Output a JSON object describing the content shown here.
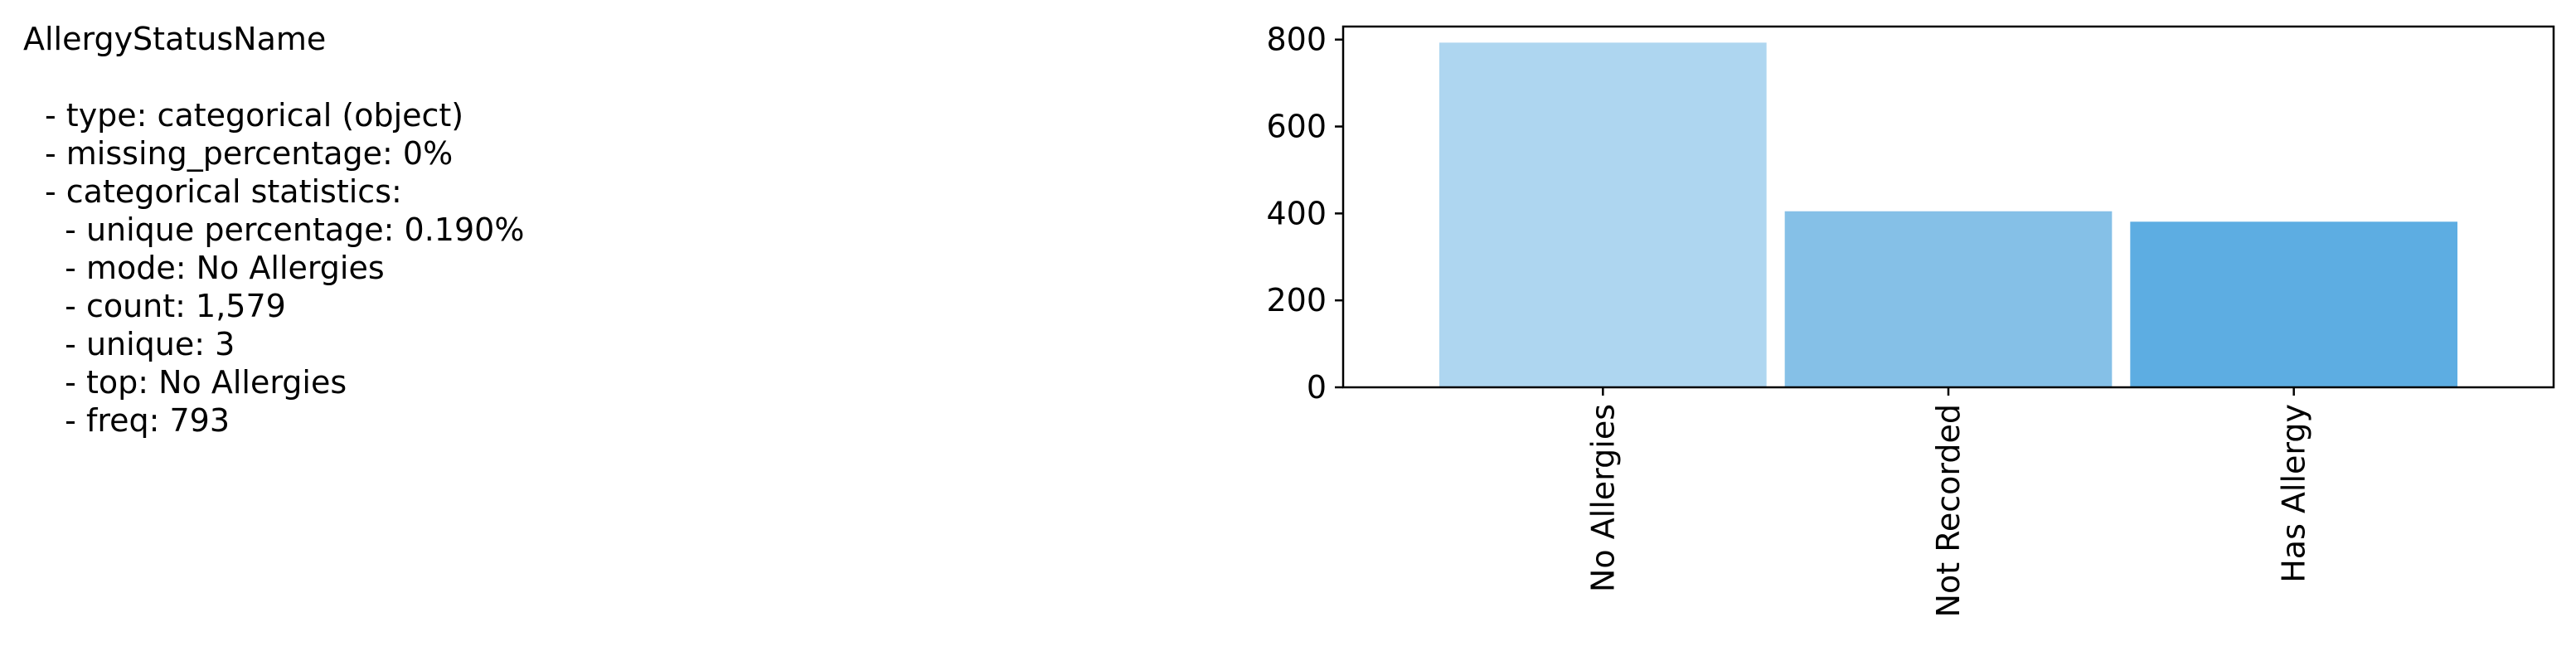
{
  "summary": {
    "column_name": "AllergyStatusName",
    "lines": [
      "- type: categorical (object)",
      "- missing_percentage: 0%",
      "- categorical statistics:",
      "  - unique percentage: 0.190%",
      "  - mode: No Allergies",
      "  - count: 1,579",
      "  - unique: 3",
      "  - top: No Allergies",
      "  - freq: 793"
    ]
  },
  "chart_data": {
    "type": "bar",
    "title": "",
    "xlabel": "",
    "ylabel": "",
    "categories": [
      "No Allergies",
      "Not Recorded",
      "Has Allergy"
    ],
    "values": [
      793,
      405,
      381
    ],
    "colors": [
      "#aed6f0",
      "#85c0e7",
      "#5dade2"
    ],
    "ylim": [
      0,
      830
    ],
    "yticks": [
      0,
      200,
      400,
      600,
      800
    ],
    "xtick_rotation": "vertical",
    "grid": false,
    "legend": "none"
  }
}
